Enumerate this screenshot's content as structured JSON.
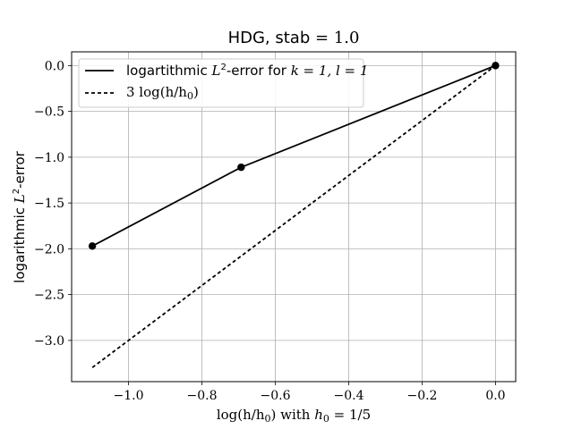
{
  "chart_data": {
    "type": "line",
    "title": {
      "prefix": "HDG, stab",
      "math": " = 1.0"
    },
    "xlabel": {
      "math": "log(h/h",
      "sub": "0",
      "mid": ") with ",
      "math2": "h",
      "sub2": "0",
      "tail": " = 1/5"
    },
    "ylabel": {
      "prefix": "logarithmic ",
      "math": "L",
      "sup": "2",
      "suffix": "-error"
    },
    "xlim": [
      -1.155,
      0.055
    ],
    "ylim": [
      -3.45,
      0.15
    ],
    "xticks": [
      -1.0,
      -0.8,
      -0.6,
      -0.4,
      -0.2,
      0.0
    ],
    "xtick_labels": [
      "−1.0",
      "−0.8",
      "−0.6",
      "−0.4",
      "−0.2",
      "0.0"
    ],
    "yticks": [
      0.0,
      -0.5,
      -1.0,
      -1.5,
      -2.0,
      -2.5,
      -3.0
    ],
    "ytick_labels": [
      "0.0",
      "−0.5",
      "−1.0",
      "−1.5",
      "−2.0",
      "−2.5",
      "−3.0"
    ],
    "grid": true,
    "legend_position": "top-left",
    "series": [
      {
        "name": "logartithmic L^2-error for k = 1, l = 1",
        "legend": {
          "prefix": "logartithmic ",
          "m1": "L",
          "sup": "2",
          "mid": "-error for ",
          "m2": "k = 1, l = 1"
        },
        "style": "solid",
        "markers": true,
        "color": "#000000",
        "x": [
          -1.0986,
          -0.6931,
          0.0
        ],
        "y": [
          -1.97,
          -1.11,
          0.0
        ]
      },
      {
        "name": "3 log(h/h0)",
        "legend": {
          "m1": "3 log(h/h",
          "sub": "0",
          "tail": ")"
        },
        "style": "dashed",
        "markers": false,
        "color": "#000000",
        "x": [
          -1.0986,
          0.0
        ],
        "y": [
          -3.2958,
          0.0
        ]
      }
    ]
  }
}
